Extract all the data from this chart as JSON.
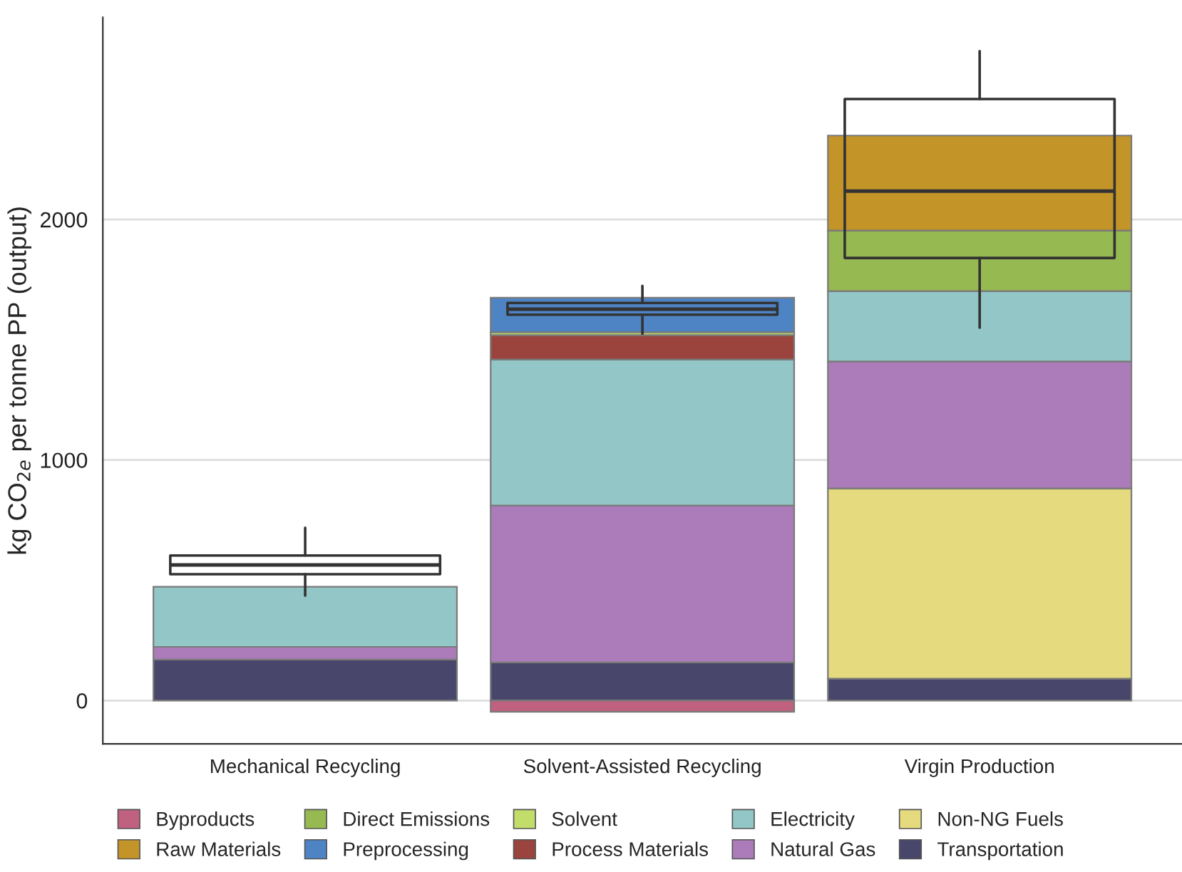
{
  "chart_data": {
    "type": "bar",
    "stacked": true,
    "ylabel": "kg CO$_{2e}$ per tonne PP (output)",
    "categories": [
      "Mechanical Recycling",
      "Solvent-Assisted Recycling",
      "Virgin Production"
    ],
    "ylim": [
      -180,
      2840
    ],
    "yticks": [
      0,
      1000,
      2000
    ],
    "grid": "y",
    "legend": "bottom",
    "series": [
      {
        "name": "Transportation",
        "color": "#48466b",
        "values": [
          170,
          158,
          91
        ]
      },
      {
        "name": "Non-NG Fuels",
        "color": "#e6da7e",
        "values": [
          null,
          null,
          791
        ]
      },
      {
        "name": "Natural Gas",
        "color": "#ab7cb9",
        "values": [
          53,
          653,
          528
        ]
      },
      {
        "name": "Electricity",
        "color": "#93c6c6",
        "values": [
          250,
          607,
          292
        ]
      },
      {
        "name": "Process Materials",
        "color": "#9a443d",
        "values": [
          null,
          101,
          null
        ]
      },
      {
        "name": "Solvent",
        "color": "#c3dd6a",
        "values": [
          null,
          12,
          null
        ]
      },
      {
        "name": "Preprocessing",
        "color": "#4e84c4",
        "values": [
          null,
          144,
          null
        ]
      },
      {
        "name": "Direct Emissions",
        "color": "#97b951",
        "values": [
          null,
          null,
          252
        ]
      },
      {
        "name": "Raw Materials",
        "color": "#c39428",
        "values": [
          null,
          null,
          395
        ]
      },
      {
        "name": "Byproducts",
        "color": "#c0617f",
        "values": [
          null,
          -47,
          null
        ]
      },
      {
        "type": "box",
        "color": "#333333",
        "boxes": [
          {
            "low": 436,
            "q1": 525,
            "median": 564,
            "q3": 603,
            "high": 718
          },
          {
            "low": 1525,
            "q1": 1604,
            "median": 1627,
            "q3": 1653,
            "high": 1724
          },
          {
            "low": 1550,
            "q1": 1840,
            "median": 2118,
            "q3": 2501,
            "high": 2700
          }
        ]
      }
    ]
  }
}
